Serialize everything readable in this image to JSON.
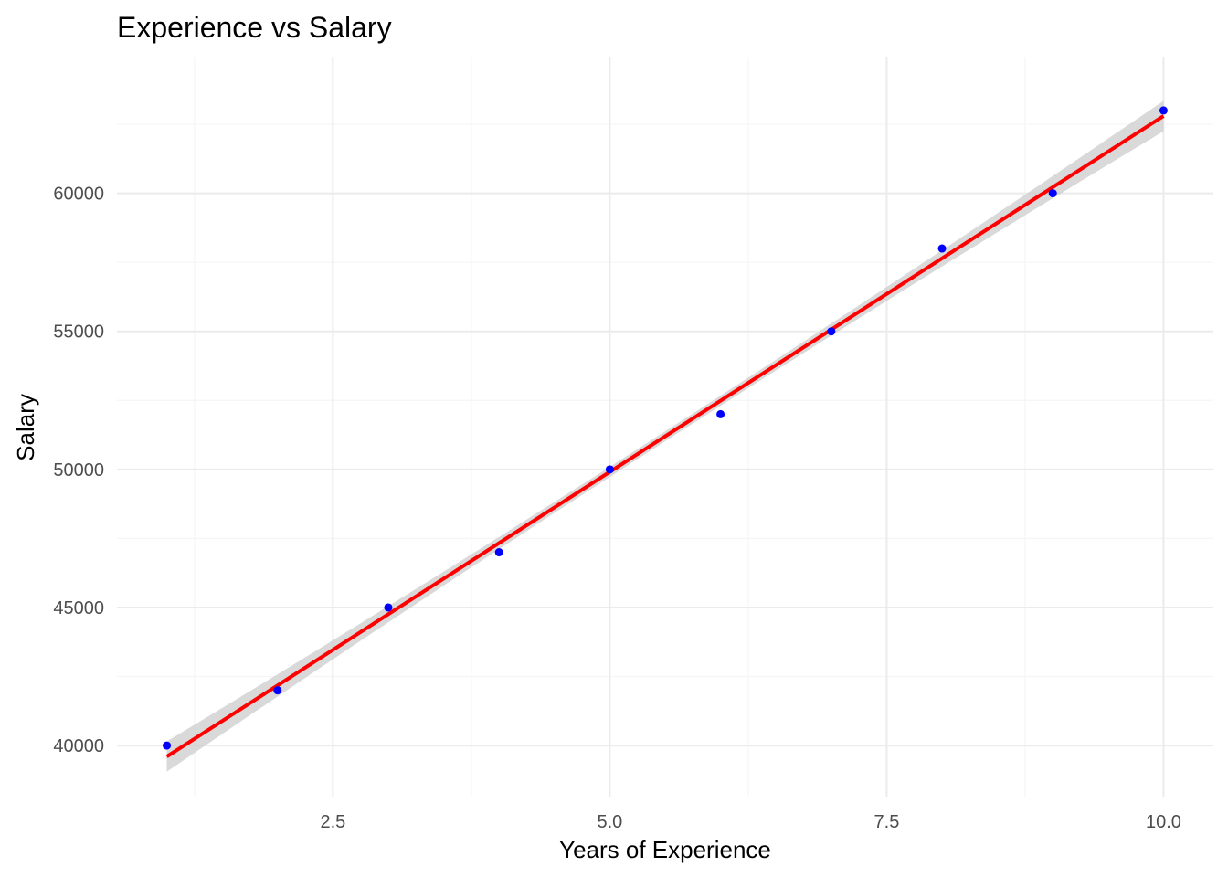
{
  "chart_data": {
    "type": "scatter",
    "title": "Experience vs Salary",
    "xlabel": "Years of Experience",
    "ylabel": "Salary",
    "xlim": [
      0.55,
      10.45
    ],
    "ylim": [
      38150,
      64950
    ],
    "grid": true,
    "x_ticks": [
      2.5,
      5.0,
      7.5,
      10.0
    ],
    "x_tick_labels": [
      "2.5",
      "5.0",
      "7.5",
      "10.0"
    ],
    "x_minor_ticks": [
      1.25,
      3.75,
      6.25,
      8.75
    ],
    "y_ticks": [
      40000,
      45000,
      50000,
      55000,
      60000
    ],
    "y_tick_labels": [
      "40000",
      "45000",
      "50000",
      "55000",
      "60000"
    ],
    "y_minor_ticks": [
      42500,
      47500,
      52500,
      57500,
      62500
    ],
    "series": [
      {
        "name": "observations",
        "x": [
          1,
          2,
          3,
          4,
          5,
          6,
          7,
          8,
          9,
          10
        ],
        "y": [
          40000,
          42000,
          45000,
          47000,
          50000,
          52000,
          55000,
          58000,
          60000,
          63000
        ]
      }
    ],
    "trendline": {
      "method": "linear",
      "x_range": [
        1,
        10
      ],
      "y_start": 39600,
      "y_end": 62800,
      "ci_halfwidth_ends": 550,
      "ci_halfwidth_center": 180
    },
    "colors": {
      "points": "#0000ff",
      "line": "#ff0000",
      "ribbon": "#cccccc",
      "grid_major": "#ebebeb",
      "grid_minor": "#f5f5f5"
    }
  }
}
